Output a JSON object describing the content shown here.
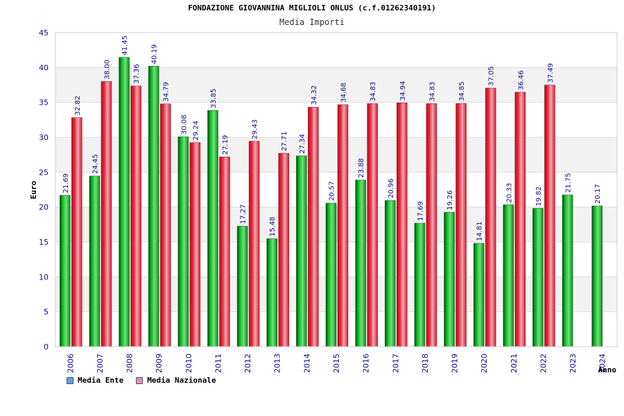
{
  "header": {
    "title": "FONDAZIONE GIOVANNINA MIGLIOLI ONLUS (c.f.01262340191)",
    "subtitle": "Media Importi"
  },
  "colors": {
    "series_ente": "#0aa51e",
    "series_nazionale": "#e8283c",
    "legend_ente": "#5aa0e6",
    "legend_nazionale": "#e68cb4",
    "grid_band": "#f2f2f2",
    "tick_text": "#0a0a8c"
  },
  "legend": [
    {
      "label": "Media Ente"
    },
    {
      "label": "Media Nazionale"
    }
  ],
  "chart_data": {
    "type": "bar",
    "title": "Media Importi",
    "xlabel": "Anno",
    "ylabel": "Euro",
    "ylim": [
      0,
      45
    ],
    "yticks": [
      0,
      5,
      10,
      15,
      20,
      25,
      30,
      35,
      40,
      45
    ],
    "categories": [
      "2006",
      "2007",
      "2008",
      "2009",
      "2010",
      "2011",
      "2012",
      "2013",
      "2014",
      "2015",
      "2016",
      "2017",
      "2018",
      "2019",
      "2020",
      "2021",
      "2022",
      "2023",
      "2024"
    ],
    "series": [
      {
        "name": "Media Ente",
        "values": [
          21.69,
          24.45,
          41.45,
          40.19,
          30.08,
          33.85,
          17.27,
          15.48,
          27.34,
          20.57,
          23.88,
          20.96,
          17.69,
          19.26,
          14.81,
          20.33,
          19.82,
          21.75,
          20.17
        ],
        "labels": [
          "21.69",
          "24.45",
          "41.45",
          "40.19",
          "30.08",
          "33.85",
          "17.27",
          "15.48",
          "27.34",
          "20.57",
          "23.88",
          "20.96",
          "17.69",
          "19.26",
          "14.81",
          "20.33",
          "19.82",
          "21.75",
          "20.17"
        ]
      },
      {
        "name": "Media Nazionale",
        "values": [
          32.82,
          38.0,
          37.36,
          34.79,
          29.24,
          27.19,
          29.43,
          27.71,
          34.32,
          34.68,
          34.83,
          34.94,
          34.83,
          34.85,
          37.05,
          36.46,
          37.49,
          null,
          null
        ],
        "labels": [
          "32.82",
          "38.00",
          "37.36",
          "34.79",
          "29.24",
          "27.19",
          "29.43",
          "27.71",
          "34.32",
          "34.68",
          "34.83",
          "34.94",
          "34.83",
          "34.85",
          "37.05",
          "36.46",
          "37.49",
          null,
          null
        ]
      }
    ],
    "grid": true,
    "legend_position": "bottom-left"
  }
}
